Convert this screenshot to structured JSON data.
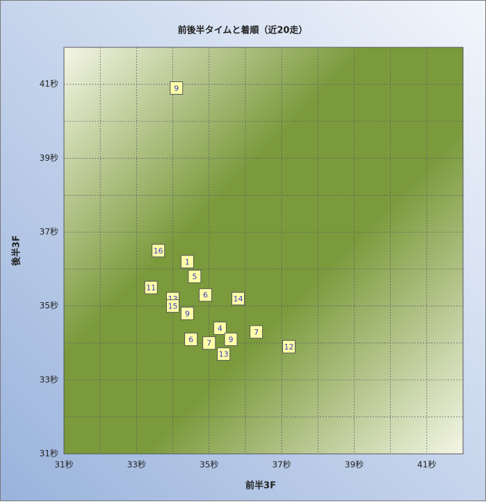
{
  "chart_data": {
    "type": "scatter",
    "title": "前後半タイムと着順（近20走）",
    "x_label": "前半3F",
    "y_label": "後半3F",
    "x": [
      34.1,
      33.6,
      34.4,
      34.6,
      33.4,
      34.9,
      35.8,
      34.0,
      34.0,
      34.4,
      35.3,
      36.3,
      34.5,
      35.6,
      35.0,
      35.4,
      37.2
    ],
    "y": [
      40.9,
      36.5,
      36.2,
      35.8,
      35.5,
      35.3,
      35.2,
      35.2,
      35.0,
      34.8,
      34.4,
      34.3,
      34.1,
      34.1,
      34.0,
      33.7,
      33.9
    ],
    "point_labels": [
      9,
      16,
      1,
      5,
      11,
      6,
      14,
      13,
      15,
      9,
      4,
      7,
      6,
      9,
      7,
      13,
      12
    ],
    "xlim": [
      31,
      42
    ],
    "ylim": [
      31,
      42
    ],
    "xticks": [
      {
        "value": 31,
        "label": "31秒"
      },
      {
        "value": 33,
        "label": "33秒"
      },
      {
        "value": 35,
        "label": "35秒"
      },
      {
        "value": 37,
        "label": "37秒"
      },
      {
        "value": 39,
        "label": "39秒"
      },
      {
        "value": 41,
        "label": "41秒"
      }
    ],
    "yticks": [
      {
        "value": 31,
        "label": "31秒"
      },
      {
        "value": 33,
        "label": "33秒"
      },
      {
        "value": 35,
        "label": "35秒"
      },
      {
        "value": 37,
        "label": "37秒"
      },
      {
        "value": 39,
        "label": "39秒"
      },
      {
        "value": 41,
        "label": "41秒"
      }
    ],
    "xminor_ticks": [
      32,
      34,
      36,
      38,
      40,
      42
    ],
    "yminor_ticks": [
      32,
      34,
      36,
      38,
      40,
      42
    ],
    "grid": true,
    "marker_color": "#ffffa8",
    "label_color": "#3c3cc0"
  }
}
